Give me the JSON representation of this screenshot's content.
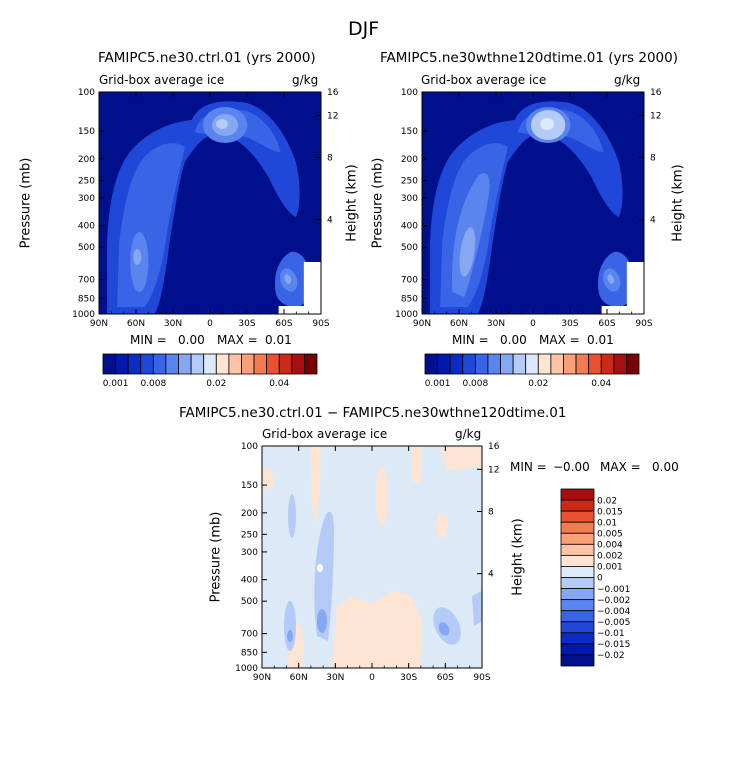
{
  "figure": {
    "title": "DJF"
  },
  "chart_data": [
    {
      "type": "heatmap",
      "title": "FAMIPC5.ne30.ctrl.01 (yrs 2000)",
      "field_label": "Grid-box average ice",
      "units": "g/kg",
      "ylabel": "Pressure (mb)",
      "ylabel_right": "Height (km)",
      "x_ticks": [
        "90N",
        "60N",
        "30N",
        "0",
        "30S",
        "60S",
        "90S"
      ],
      "y_ticks": [
        "100",
        "150",
        "200",
        "250",
        "300",
        "400",
        "500",
        "700",
        "850",
        "1000"
      ],
      "y_ticks_right": [
        "16",
        "12",
        "8",
        "4"
      ],
      "stats": {
        "min_label": "MIN =",
        "min": "0.00",
        "max_label": "MAX =",
        "max": "0.01"
      },
      "colorbar": {
        "orientation": "horizontal",
        "colors": [
          "#000f8c",
          "#0019a8",
          "#0a2cc4",
          "#1f48d9",
          "#3a64e6",
          "#5a84ee",
          "#86a8f3",
          "#b5cbf7",
          "#dde9fb",
          "#fde4d3",
          "#fcc4a5",
          "#f9a078",
          "#f47b50",
          "#e8522f",
          "#cc2a18",
          "#a50f0f",
          "#780000"
        ],
        "labels": [
          "0.001",
          "0.008",
          "0.02",
          "0.04"
        ]
      }
    },
    {
      "type": "heatmap",
      "title": "FAMIPC5.ne30wthne120dtime.01 (yrs 2000)",
      "field_label": "Grid-box average ice",
      "units": "g/kg",
      "ylabel": "Pressure (mb)",
      "ylabel_right": "Height (km)",
      "x_ticks": [
        "90N",
        "60N",
        "30N",
        "0",
        "30S",
        "60S",
        "90S"
      ],
      "y_ticks": [
        "100",
        "150",
        "200",
        "250",
        "300",
        "400",
        "500",
        "700",
        "850",
        "1000"
      ],
      "y_ticks_right": [
        "16",
        "12",
        "8",
        "4"
      ],
      "stats": {
        "min_label": "MIN =",
        "min": "0.00",
        "max_label": "MAX =",
        "max": "0.01"
      },
      "colorbar": {
        "orientation": "horizontal",
        "colors": [
          "#000f8c",
          "#0019a8",
          "#0a2cc4",
          "#1f48d9",
          "#3a64e6",
          "#5a84ee",
          "#86a8f3",
          "#b5cbf7",
          "#dde9fb",
          "#fde4d3",
          "#fcc4a5",
          "#f9a078",
          "#f47b50",
          "#e8522f",
          "#cc2a18",
          "#a50f0f",
          "#780000"
        ],
        "labels": [
          "0.001",
          "0.008",
          "0.02",
          "0.04"
        ]
      }
    },
    {
      "type": "heatmap",
      "title": "FAMIPC5.ne30.ctrl.01 − FAMIPC5.ne30wthne120dtime.01",
      "field_label": "Grid-box average ice",
      "units": "g/kg",
      "ylabel": "Pressure (mb)",
      "ylabel_right": "Height (km)",
      "x_ticks": [
        "90N",
        "60N",
        "30N",
        "0",
        "30S",
        "60S",
        "90S"
      ],
      "y_ticks": [
        "100",
        "150",
        "200",
        "250",
        "300",
        "400",
        "500",
        "700",
        "850",
        "1000"
      ],
      "y_ticks_right": [
        "16",
        "12",
        "8",
        "4"
      ],
      "stats": {
        "min_label": "MIN =",
        "min": "−0.00",
        "max_label": "MAX =",
        "max": "0.00"
      },
      "colorbar": {
        "orientation": "vertical",
        "colors": [
          "#a50f0f",
          "#cc2a18",
          "#e8522f",
          "#f47b50",
          "#f9a078",
          "#fcc4a5",
          "#fde4d3",
          "#ddeaf8",
          "#b5cbf7",
          "#86a8f3",
          "#5a84ee",
          "#3a64e6",
          "#1f48d9",
          "#0a2cc4",
          "#0019a8",
          "#000f8c"
        ],
        "labels": [
          "0.02",
          "0.015",
          "0.01",
          "0.005",
          "0.004",
          "0.002",
          "0.001",
          "0",
          "−0.001",
          "−0.002",
          "−0.004",
          "−0.005",
          "−0.01",
          "−0.015",
          "−0.02"
        ]
      }
    }
  ]
}
